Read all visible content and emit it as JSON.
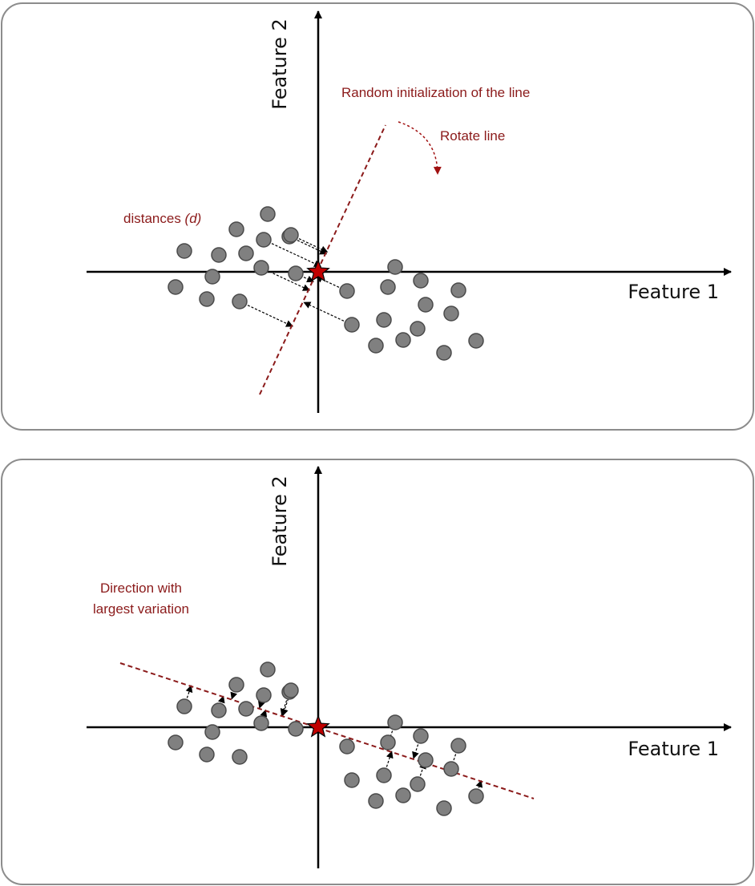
{
  "colors": {
    "accent": "#8b1a1a",
    "point_fill": "#808080",
    "point_stroke": "#4a4a4a",
    "axis": "#000000",
    "star": "#c00000",
    "panel_border": "#8c8c8c"
  },
  "panels": [
    {
      "id": "top",
      "x_axis_label": "Feature 1",
      "y_axis_label": "Feature 2",
      "annotations": {
        "init_line": "Random initialization of the line",
        "rotate": "Rotate line",
        "distances_prefix": "distances ",
        "distances_var": "(d)"
      }
    },
    {
      "id": "bottom",
      "x_axis_label": "Feature 1",
      "y_axis_label": "Feature 2",
      "annotations": {
        "direction_line1": "Direction with",
        "direction_line2": "largest variation"
      }
    }
  ],
  "points": [
    [
      -167,
      -26
    ],
    [
      -124,
      -21
    ],
    [
      -90,
      -23
    ],
    [
      -68,
      -40
    ],
    [
      -36,
      -44
    ],
    [
      -102,
      -53
    ],
    [
      -63,
      -72
    ],
    [
      -34,
      -46
    ],
    [
      -178,
      19
    ],
    [
      -132,
      6
    ],
    [
      -139,
      34
    ],
    [
      -98,
      37
    ],
    [
      -71,
      -5
    ],
    [
      -28,
      2
    ],
    [
      96,
      -6
    ],
    [
      128,
      11
    ],
    [
      175,
      23
    ],
    [
      87,
      19
    ],
    [
      36,
      24
    ],
    [
      134,
      41
    ],
    [
      166,
      52
    ],
    [
      42,
      66
    ],
    [
      82,
      60
    ],
    [
      124,
      71
    ],
    [
      106,
      85
    ],
    [
      72,
      92
    ],
    [
      157,
      101
    ],
    [
      197,
      86
    ]
  ]
}
